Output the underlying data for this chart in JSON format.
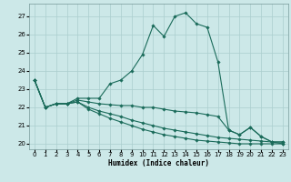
{
  "xlabel": "Humidex (Indice chaleur)",
  "bg_color": "#cce8e8",
  "grid_color": "#aacece",
  "line_color": "#1a6b5a",
  "xlim": [
    -0.5,
    23.5
  ],
  "ylim": [
    19.7,
    27.7
  ],
  "yticks": [
    20,
    21,
    22,
    23,
    24,
    25,
    26,
    27
  ],
  "xticks": [
    0,
    1,
    2,
    3,
    4,
    5,
    6,
    7,
    8,
    9,
    10,
    11,
    12,
    13,
    14,
    15,
    16,
    17,
    18,
    19,
    20,
    21,
    22,
    23
  ],
  "series": [
    [
      23.5,
      22.0,
      22.2,
      22.2,
      22.5,
      22.5,
      22.5,
      23.3,
      23.5,
      24.0,
      24.9,
      26.5,
      25.9,
      27.0,
      27.2,
      26.6,
      26.4,
      24.5,
      20.75,
      20.5,
      20.9,
      20.4,
      20.1,
      20.1
    ],
    [
      23.5,
      22.0,
      22.2,
      22.2,
      22.4,
      22.3,
      22.2,
      22.15,
      22.1,
      22.1,
      22.0,
      22.0,
      21.9,
      21.8,
      21.75,
      21.7,
      21.6,
      21.5,
      20.75,
      20.5,
      20.9,
      20.4,
      20.1,
      20.1
    ],
    [
      23.5,
      22.0,
      22.2,
      22.2,
      22.3,
      22.0,
      21.8,
      21.65,
      21.5,
      21.3,
      21.15,
      21.0,
      20.85,
      20.75,
      20.65,
      20.55,
      20.45,
      20.35,
      20.3,
      20.25,
      20.2,
      20.15,
      20.1,
      20.0
    ],
    [
      23.5,
      22.0,
      22.2,
      22.2,
      22.3,
      21.9,
      21.65,
      21.4,
      21.2,
      21.0,
      20.8,
      20.65,
      20.5,
      20.4,
      20.3,
      20.2,
      20.15,
      20.1,
      20.05,
      20.0,
      20.0,
      20.0,
      20.0,
      20.0
    ]
  ]
}
